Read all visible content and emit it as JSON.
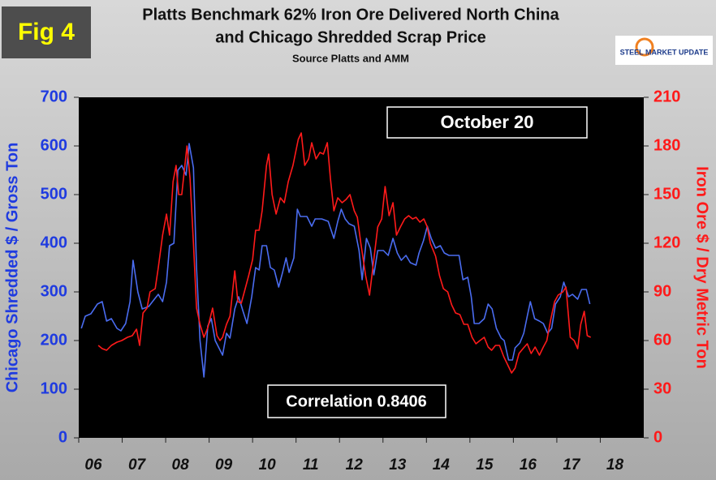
{
  "chart_data": {
    "type": "line",
    "title": "Platts Benchmark 62% Iron Ore Delivered North China",
    "title_line2": "and Chicago Shredded Scrap Price",
    "subtitle": "Source Platts and AMM",
    "fig_label": "Fig 4",
    "logo": "STEEL MARKET UPDATE",
    "annotations": [
      "October 20",
      "Correlation 0.8406"
    ],
    "y_label": "Chicago Shredded $ / Gross Ton",
    "y2_label": "Iron Ore $ / Dry Metric Ton",
    "xlim": [
      2006,
      2019
    ],
    "xticks": [
      {
        "value": 2006,
        "label": "06"
      },
      {
        "value": 2007,
        "label": "07"
      },
      {
        "value": 2008,
        "label": "08"
      },
      {
        "value": 2009,
        "label": "09"
      },
      {
        "value": 2010,
        "label": "10"
      },
      {
        "value": 2011,
        "label": "11"
      },
      {
        "value": 2012,
        "label": "12"
      },
      {
        "value": 2013,
        "label": "13"
      },
      {
        "value": 2014,
        "label": "14"
      },
      {
        "value": 2015,
        "label": "15"
      },
      {
        "value": 2016,
        "label": "16"
      },
      {
        "value": 2017,
        "label": "17"
      },
      {
        "value": 2018,
        "label": "18"
      }
    ],
    "ylim": [
      0,
      700
    ],
    "yticks": [
      0,
      100,
      200,
      300,
      400,
      500,
      600,
      700
    ],
    "y2lim": [
      0,
      210
    ],
    "y2ticks": [
      0,
      30,
      60,
      90,
      120,
      150,
      180,
      210
    ],
    "series": [
      {
        "color": "#4a6cf0",
        "axis": "y",
        "x": [
          2006.06,
          2006.15,
          2006.28,
          2006.43,
          2006.54,
          2006.64,
          2006.75,
          2006.88,
          2006.97,
          2007.08,
          2007.18,
          2007.25,
          2007.36,
          2007.46,
          2007.61,
          2007.74,
          2007.83,
          2007.93,
          2008.02,
          2008.09,
          2008.19,
          2008.28,
          2008.37,
          2008.47,
          2008.54,
          2008.64,
          2008.71,
          2008.79,
          2008.88,
          2008.97,
          2009.05,
          2009.14,
          2009.31,
          2009.4,
          2009.48,
          2009.59,
          2009.68,
          2009.78,
          2009.87,
          2009.98,
          2010.07,
          2010.15,
          2010.22,
          2010.32,
          2010.41,
          2010.5,
          2010.6,
          2010.69,
          2010.77,
          2010.84,
          2010.95,
          2011.03,
          2011.1,
          2011.25,
          2011.36,
          2011.44,
          2011.59,
          2011.74,
          2011.87,
          2011.96,
          2012.04,
          2012.13,
          2012.22,
          2012.34,
          2012.45,
          2012.52,
          2012.62,
          2012.71,
          2012.79,
          2012.88,
          2013.01,
          2013.12,
          2013.23,
          2013.33,
          2013.42,
          2013.53,
          2013.63,
          2013.76,
          2013.83,
          2013.93,
          2014.02,
          2014.11,
          2014.21,
          2014.32,
          2014.41,
          2014.52,
          2014.62,
          2014.75,
          2014.84,
          2014.95,
          2015.03,
          2015.1,
          2015.21,
          2015.33,
          2015.42,
          2015.51,
          2015.61,
          2015.72,
          2015.79,
          2015.89,
          2015.98,
          2016.04,
          2016.15,
          2016.24,
          2016.32,
          2016.39,
          2016.49,
          2016.6,
          2016.69,
          2016.79,
          2016.88,
          2016.97,
          2017.08,
          2017.16,
          2017.27,
          2017.36,
          2017.48,
          2017.57,
          2017.68,
          2017.76
        ],
        "values": [
          225,
          250,
          255,
          275,
          280,
          240,
          245,
          225,
          220,
          235,
          280,
          365,
          300,
          265,
          270,
          285,
          295,
          280,
          320,
          395,
          400,
          550,
          560,
          540,
          605,
          555,
          350,
          200,
          125,
          230,
          245,
          200,
          170,
          215,
          205,
          265,
          290,
          260,
          235,
          290,
          350,
          345,
          395,
          395,
          350,
          345,
          310,
          340,
          370,
          340,
          370,
          470,
          455,
          455,
          435,
          450,
          450,
          445,
          410,
          445,
          470,
          450,
          440,
          435,
          385,
          325,
          410,
          390,
          335,
          385,
          385,
          375,
          410,
          380,
          365,
          375,
          360,
          355,
          380,
          405,
          435,
          410,
          390,
          395,
          380,
          375,
          375,
          375,
          325,
          330,
          290,
          235,
          235,
          245,
          275,
          265,
          225,
          205,
          200,
          160,
          160,
          185,
          195,
          215,
          250,
          280,
          245,
          240,
          235,
          215,
          225,
          275,
          290,
          320,
          290,
          295,
          285,
          305,
          305,
          275
        ]
      },
      {
        "color": "#ff1a1a",
        "axis": "y2",
        "x": [
          2006.45,
          2006.54,
          2006.64,
          2006.75,
          2006.88,
          2006.99,
          2007.12,
          2007.23,
          2007.33,
          2007.4,
          2007.48,
          2007.57,
          2007.64,
          2007.76,
          2007.83,
          2007.93,
          2008.02,
          2008.09,
          2008.17,
          2008.24,
          2008.3,
          2008.37,
          2008.49,
          2008.56,
          2008.64,
          2008.71,
          2008.79,
          2008.88,
          2008.97,
          2009.08,
          2009.18,
          2009.25,
          2009.31,
          2009.4,
          2009.48,
          2009.59,
          2009.66,
          2009.74,
          2009.81,
          2009.91,
          2010.0,
          2010.07,
          2010.15,
          2010.22,
          2010.32,
          2010.37,
          2010.45,
          2010.54,
          2010.64,
          2010.73,
          2010.82,
          2010.93,
          2011.05,
          2011.12,
          2011.2,
          2011.29,
          2011.36,
          2011.46,
          2011.55,
          2011.63,
          2011.72,
          2011.79,
          2011.87,
          2011.96,
          2012.06,
          2012.15,
          2012.24,
          2012.34,
          2012.41,
          2012.49,
          2012.6,
          2012.69,
          2012.79,
          2012.88,
          2012.97,
          2013.05,
          2013.14,
          2013.23,
          2013.31,
          2013.4,
          2013.5,
          2013.59,
          2013.68,
          2013.76,
          2013.85,
          2013.94,
          2014.02,
          2014.09,
          2014.21,
          2014.3,
          2014.39,
          2014.49,
          2014.58,
          2014.67,
          2014.77,
          2014.86,
          2014.95,
          2015.05,
          2015.14,
          2015.23,
          2015.33,
          2015.42,
          2015.5,
          2015.59,
          2015.68,
          2015.78,
          2015.87,
          2015.96,
          2016.04,
          2016.13,
          2016.22,
          2016.32,
          2016.41,
          2016.5,
          2016.6,
          2016.69,
          2016.77,
          2016.86,
          2016.95,
          2017.03,
          2017.14,
          2017.21,
          2017.31,
          2017.4,
          2017.48,
          2017.55,
          2017.63,
          2017.7,
          2017.78
        ],
        "values": [
          57,
          55,
          54,
          57,
          59,
          60,
          62,
          63,
          67,
          57,
          77,
          80,
          90,
          92,
          105,
          125,
          138,
          125,
          158,
          168,
          150,
          150,
          180,
          160,
          120,
          80,
          70,
          62,
          68,
          80,
          63,
          60,
          62,
          70,
          75,
          103,
          84,
          83,
          90,
          100,
          110,
          128,
          128,
          140,
          168,
          175,
          150,
          138,
          148,
          145,
          158,
          168,
          184,
          188,
          168,
          172,
          182,
          172,
          176,
          175,
          182,
          160,
          140,
          148,
          145,
          147,
          150,
          140,
          136,
          120,
          100,
          88,
          110,
          130,
          135,
          155,
          137,
          145,
          125,
          130,
          135,
          137,
          135,
          136,
          133,
          135,
          130,
          120,
          112,
          100,
          92,
          90,
          82,
          77,
          76,
          70,
          70,
          62,
          58,
          60,
          62,
          56,
          54,
          57,
          57,
          50,
          45,
          40,
          43,
          52,
          55,
          58,
          52,
          56,
          51,
          56,
          60,
          73,
          84,
          88,
          90,
          93,
          62,
          60,
          55,
          70,
          78,
          63,
          62
        ]
      }
    ]
  }
}
